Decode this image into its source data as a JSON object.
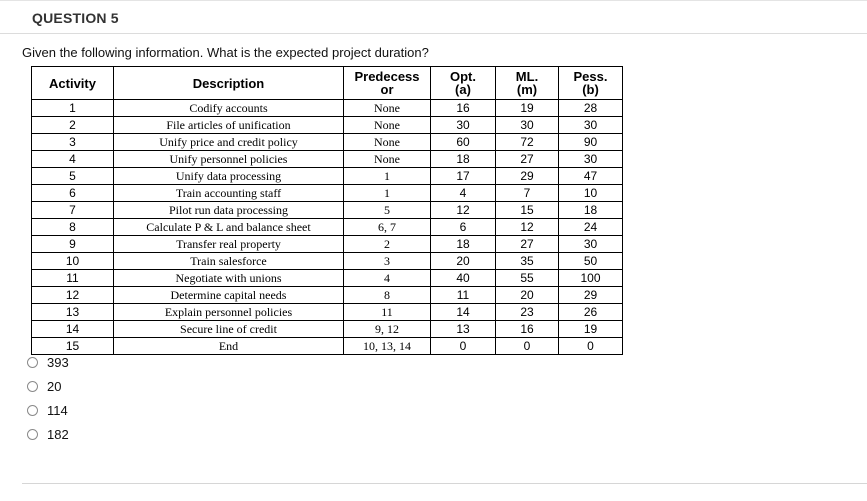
{
  "question": {
    "title": "QUESTION 5",
    "prompt": "Given the following information. What is the expected project duration?"
  },
  "table": {
    "headers": {
      "activity": "Activity",
      "description": "Description",
      "predecessor_line1": "Predecess",
      "predecessor_line2": "or",
      "opt_line1": "Opt.",
      "opt_line2": "(a)",
      "ml_line1": "ML.",
      "ml_line2": "(m)",
      "pess_line1": "Pess.",
      "pess_line2": "(b)"
    },
    "rows": [
      {
        "activity": "1",
        "description": "Codify accounts",
        "predecessor": "None",
        "opt": "16",
        "ml": "19",
        "pess": "28"
      },
      {
        "activity": "2",
        "description": "File articles of unification",
        "predecessor": "None",
        "opt": "30",
        "ml": "30",
        "pess": "30"
      },
      {
        "activity": "3",
        "description": "Unify price and credit policy",
        "predecessor": "None",
        "opt": "60",
        "ml": "72",
        "pess": "90"
      },
      {
        "activity": "4",
        "description": "Unify personnel policies",
        "predecessor": "None",
        "opt": "18",
        "ml": "27",
        "pess": "30"
      },
      {
        "activity": "5",
        "description": "Unify data processing",
        "predecessor": "1",
        "opt": "17",
        "ml": "29",
        "pess": "47"
      },
      {
        "activity": "6",
        "description": "Train accounting staff",
        "predecessor": "1",
        "opt": "4",
        "ml": "7",
        "pess": "10"
      },
      {
        "activity": "7",
        "description": "Pilot run data processing",
        "predecessor": "5",
        "opt": "12",
        "ml": "15",
        "pess": "18"
      },
      {
        "activity": "8",
        "description": "Calculate P & L and balance sheet",
        "predecessor": "6, 7",
        "opt": "6",
        "ml": "12",
        "pess": "24"
      },
      {
        "activity": "9",
        "description": "Transfer real property",
        "predecessor": "2",
        "opt": "18",
        "ml": "27",
        "pess": "30"
      },
      {
        "activity": "10",
        "description": "Train salesforce",
        "predecessor": "3",
        "opt": "20",
        "ml": "35",
        "pess": "50"
      },
      {
        "activity": "11",
        "description": "Negotiate with unions",
        "predecessor": "4",
        "opt": "40",
        "ml": "55",
        "pess": "100"
      },
      {
        "activity": "12",
        "description": "Determine capital needs",
        "predecessor": "8",
        "opt": "11",
        "ml": "20",
        "pess": "29"
      },
      {
        "activity": "13",
        "description": "Explain personnel policies",
        "predecessor": "11",
        "opt": "14",
        "ml": "23",
        "pess": "26"
      },
      {
        "activity": "14",
        "description": "Secure line of credit",
        "predecessor": "9, 12",
        "opt": "13",
        "ml": "16",
        "pess": "19"
      },
      {
        "activity": "15",
        "description": "End",
        "predecessor": "10, 13, 14",
        "opt": "0",
        "ml": "0",
        "pess": "0"
      }
    ]
  },
  "options": [
    {
      "label": "393"
    },
    {
      "label": "20"
    },
    {
      "label": "114"
    },
    {
      "label": "182"
    }
  ]
}
